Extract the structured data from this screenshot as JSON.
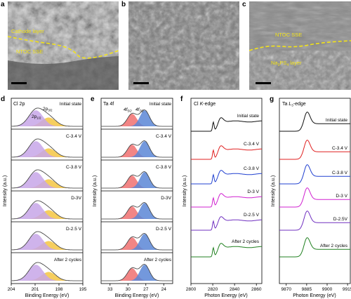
{
  "panel_letters": [
    "a",
    "b",
    "c",
    "d",
    "e",
    "f",
    "g"
  ],
  "sem": {
    "a": {
      "labels": [
        "Cathode layer",
        "NTOC SSE"
      ]
    },
    "b": {
      "labels": []
    },
    "c": {
      "labels": [
        "NTOC SSE",
        "Na3PS4 layer"
      ]
    }
  },
  "states": [
    "Initial state",
    "C-3.4 V",
    "C-3.8 V",
    "D-3V",
    "D-2.5 V",
    "After 2 cycles"
  ],
  "states_fg": [
    "Initial state",
    "C-3.4 V",
    "C-3.8 V",
    "D-3 V",
    "D-2.5 V",
    "After 2 cycles"
  ],
  "states_g": [
    "Initial state",
    "C-3.4 V",
    "C-3.8 V",
    "D-3 V",
    "D-2.5V",
    "After 2 cycles"
  ],
  "colors": {
    "yellow_line": "#f2e21a",
    "xps_yellow": "#f5c542",
    "xps_purple": "#c7a6e8",
    "xps_red": "#f07070",
    "xps_blue": "#5b86d6",
    "series": [
      "#111111",
      "#e02020",
      "#2040d0",
      "#d020d0",
      "#7030c0",
      "#208020"
    ]
  },
  "chart_data": [
    {
      "panel": "d",
      "type": "line",
      "title": "Cl 2p",
      "xlabel": "Binding Energy (eV)",
      "ylabel": "Intensity (a.u.)",
      "xlim": [
        204,
        195
      ],
      "xticks": [
        "204",
        "201",
        "198",
        "195"
      ],
      "peak_labels": [
        "2p3/2",
        "2p1/2"
      ],
      "peaks_eV": [
        199.3,
        200.9
      ],
      "series": [
        {
          "name": "Initial state"
        },
        {
          "name": "C-3.4 V"
        },
        {
          "name": "C-3.8 V"
        },
        {
          "name": "D-3V"
        },
        {
          "name": "D-2.5 V"
        },
        {
          "name": "After 2 cycles"
        }
      ]
    },
    {
      "panel": "e",
      "type": "line",
      "title": "Ta 4f",
      "xlabel": "Binding Energy (eV)",
      "ylabel": "Intensity (a.u.)",
      "xlim": [
        34.5,
        22.5
      ],
      "xticks": [
        "33",
        "30",
        "27",
        "24"
      ],
      "peak_labels": [
        "4f5/2",
        "4f7/2"
      ],
      "peaks_eV": [
        29.3,
        27.2
      ],
      "series": [
        {
          "name": "Initial state"
        },
        {
          "name": "C-3.4 V"
        },
        {
          "name": "C-3.8 V"
        },
        {
          "name": "D-3V"
        },
        {
          "name": "D-2.5 V"
        },
        {
          "name": "After 2 cycles"
        }
      ]
    },
    {
      "panel": "f",
      "type": "line",
      "title": "Cl K-edge",
      "xlabel": "Photon Energy (eV)",
      "ylabel": "Intensity (a.u.)",
      "xlim": [
        2800,
        2865
      ],
      "xticks": [
        "2800",
        "2820",
        "2840",
        "2860"
      ],
      "edge_eV": 2822,
      "series": [
        {
          "name": "Initial state"
        },
        {
          "name": "C-3.4 V"
        },
        {
          "name": "C-3.8 V"
        },
        {
          "name": "D-3 V"
        },
        {
          "name": "D-2.5 V"
        },
        {
          "name": "After 2 cycles"
        }
      ]
    },
    {
      "panel": "g",
      "type": "line",
      "title": "Ta L3-edge",
      "xlabel": "Photon Energy (eV)",
      "ylabel": "Intensity (a.u.)",
      "xlim": [
        9865,
        9917
      ],
      "xticks": [
        "9870",
        "9885",
        "9900",
        "9915"
      ],
      "edge_eV": 9884,
      "series": [
        {
          "name": "Initial state"
        },
        {
          "name": "C-3.4 V"
        },
        {
          "name": "C-3.8 V"
        },
        {
          "name": "D-3 V"
        },
        {
          "name": "D-2.5V"
        },
        {
          "name": "After 2 cycles"
        }
      ]
    }
  ]
}
